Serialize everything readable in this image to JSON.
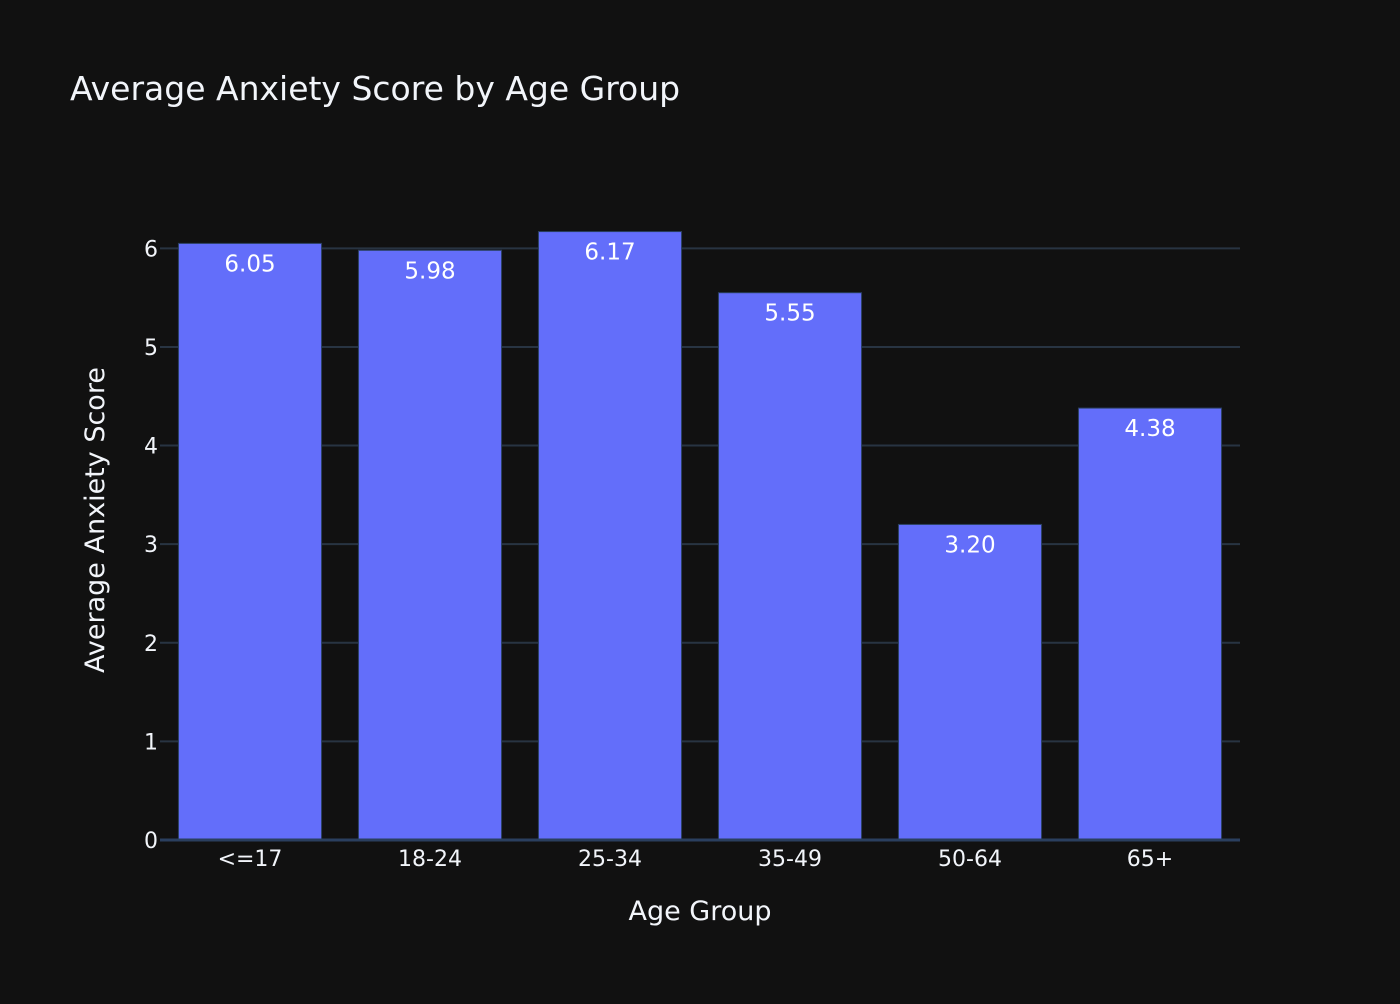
{
  "chart_data": {
    "type": "bar",
    "title": "Average Anxiety Score by Age Group",
    "xlabel": "Age Group",
    "ylabel": "Average Anxiety Score",
    "categories": [
      "<=17",
      "18-24",
      "25-34",
      "35-49",
      "50-64",
      "65+"
    ],
    "values": [
      6.05,
      5.98,
      6.17,
      5.55,
      3.2,
      4.38
    ],
    "data_labels": [
      "6.05",
      "5.98",
      "6.17",
      "5.55",
      "3.20",
      "4.38"
    ],
    "yticks": [
      "0",
      "1",
      "2",
      "3",
      "4",
      "5",
      "6"
    ],
    "ylim": [
      0,
      7.2
    ],
    "grid": true,
    "legend": "none"
  },
  "colors": {
    "background": "#111111",
    "bar": "#636efa",
    "bar_outline": "#2a3f5f",
    "grid": "#283442",
    "text": "#f2f5fa",
    "label_text": "#ffffff"
  }
}
